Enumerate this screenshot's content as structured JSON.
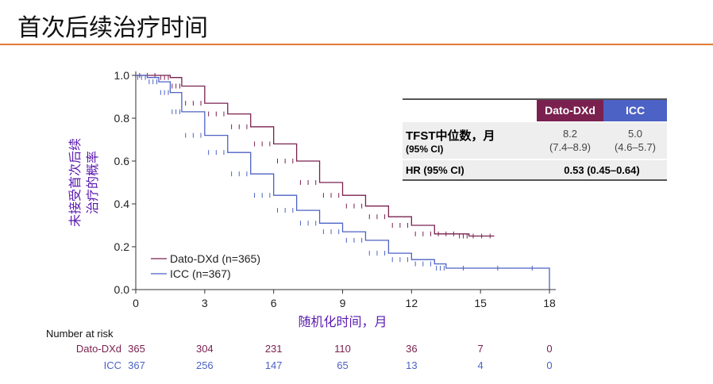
{
  "title": "首次后续治疗时间",
  "colors": {
    "dato": "#7a2150",
    "icc": "#4c62c4",
    "accent": "#e07a3a"
  },
  "table": {
    "col1": "Dato-DXd",
    "col2": "ICC",
    "row1_label": "TFST中位数，月",
    "row1_sub": "(95% CI)",
    "dato_median": "8.2",
    "dato_ci": "(7.4–8.9)",
    "icc_median": "5.0",
    "icc_ci": "(4.6–5.7)",
    "row2_label": "HR (95% CI)",
    "hr": "0.53 (0.45–0.64)"
  },
  "chart_data": {
    "type": "line",
    "xlabel": "随机化时间，月",
    "ylabel": "未接受首次后续治疗的概率",
    "ylabel_lines": [
      "未接受首次后续",
      "治疗的概率"
    ],
    "xlim": [
      0,
      18
    ],
    "ylim": [
      0,
      1
    ],
    "xticks": [
      0,
      3,
      6,
      9,
      12,
      15,
      18
    ],
    "yticks": [
      "0.0",
      "0.2",
      "0.4",
      "0.6",
      "0.8",
      "1.0"
    ],
    "legend_position": "bottom-left",
    "series": [
      {
        "name": "Dato-DXd (n=365)",
        "points": [
          [
            0,
            1
          ],
          [
            1,
            1
          ],
          [
            1.5,
            0.99
          ],
          [
            2,
            0.95
          ],
          [
            3,
            0.87
          ],
          [
            4,
            0.82
          ],
          [
            5,
            0.76
          ],
          [
            6,
            0.68
          ],
          [
            7,
            0.6
          ],
          [
            8,
            0.5
          ],
          [
            9,
            0.44
          ],
          [
            10,
            0.39
          ],
          [
            11,
            0.34
          ],
          [
            12,
            0.3
          ],
          [
            13,
            0.26
          ],
          [
            14,
            0.26
          ],
          [
            14.5,
            0.25
          ],
          [
            15.6,
            0.25
          ]
        ]
      },
      {
        "name": "ICC (n=367)",
        "points": [
          [
            0,
            1
          ],
          [
            0.5,
            0.99
          ],
          [
            1,
            0.97
          ],
          [
            1.5,
            0.92
          ],
          [
            2,
            0.83
          ],
          [
            3,
            0.72
          ],
          [
            4,
            0.64
          ],
          [
            5,
            0.54
          ],
          [
            6,
            0.44
          ],
          [
            7,
            0.37
          ],
          [
            8,
            0.31
          ],
          [
            9,
            0.27
          ],
          [
            10,
            0.23
          ],
          [
            11,
            0.17
          ],
          [
            12,
            0.14
          ],
          [
            13,
            0.12
          ],
          [
            13.5,
            0.1
          ],
          [
            18,
            0.1
          ],
          [
            18,
            0
          ]
        ]
      }
    ],
    "risk_table": {
      "title": "Number at risk",
      "rows": [
        {
          "label": "Dato-DXd",
          "values": [
            365,
            304,
            231,
            110,
            36,
            7,
            0
          ]
        },
        {
          "label": "ICC",
          "values": [
            367,
            256,
            147,
            65,
            13,
            4,
            0
          ]
        }
      ]
    }
  }
}
